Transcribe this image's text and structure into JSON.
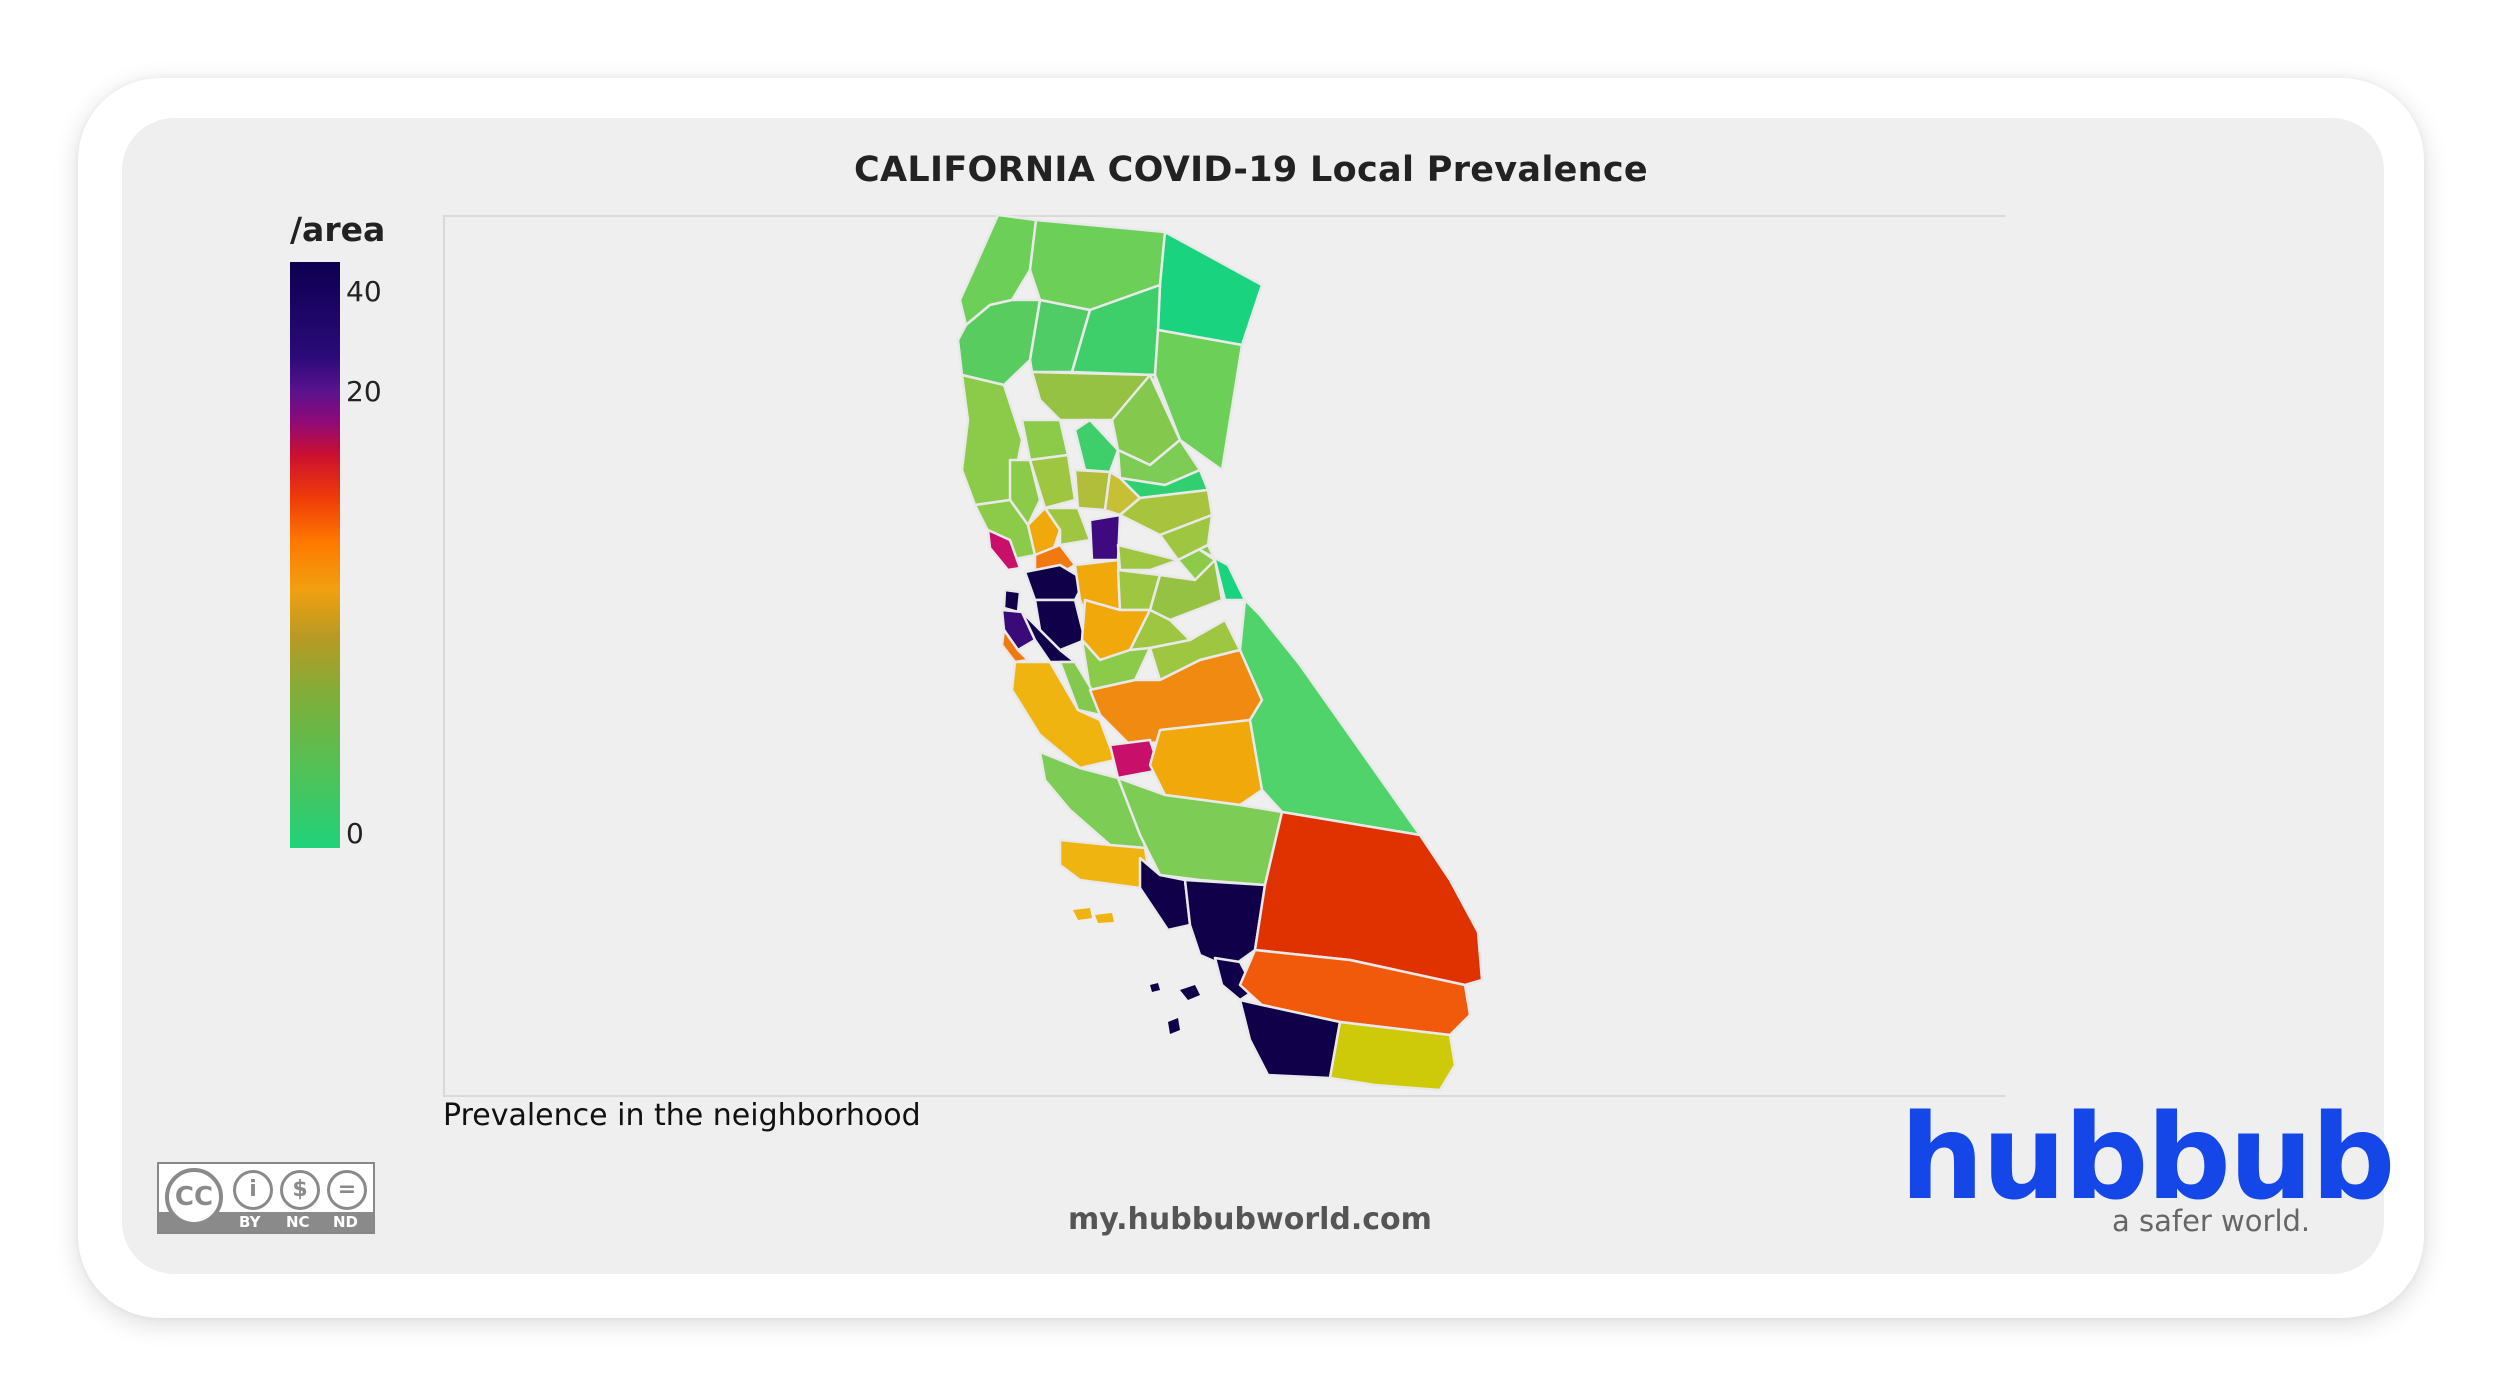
{
  "title": "CALIFORNIA COVID-19 Local Prevalence",
  "legend": {
    "title": "/area",
    "ticks": [
      {
        "value": 40,
        "label": "40"
      },
      {
        "value": 20,
        "label": "20"
      },
      {
        "value": 0,
        "label": "0"
      }
    ]
  },
  "caption": "Prevalence in the neighborhood",
  "footer": {
    "url": "my.hubbubworld.com",
    "brand": "hubbub",
    "tagline": "a safer world."
  },
  "license": {
    "badge": "CC",
    "parts": [
      "BY",
      "NC",
      "ND"
    ]
  },
  "colors": {
    "brand": "#1546e8",
    "green": "#3fcf6a",
    "dark": "#10004a",
    "red": "#e03200",
    "orange": "#f07a10",
    "amber": "#f0a80a"
  }
}
